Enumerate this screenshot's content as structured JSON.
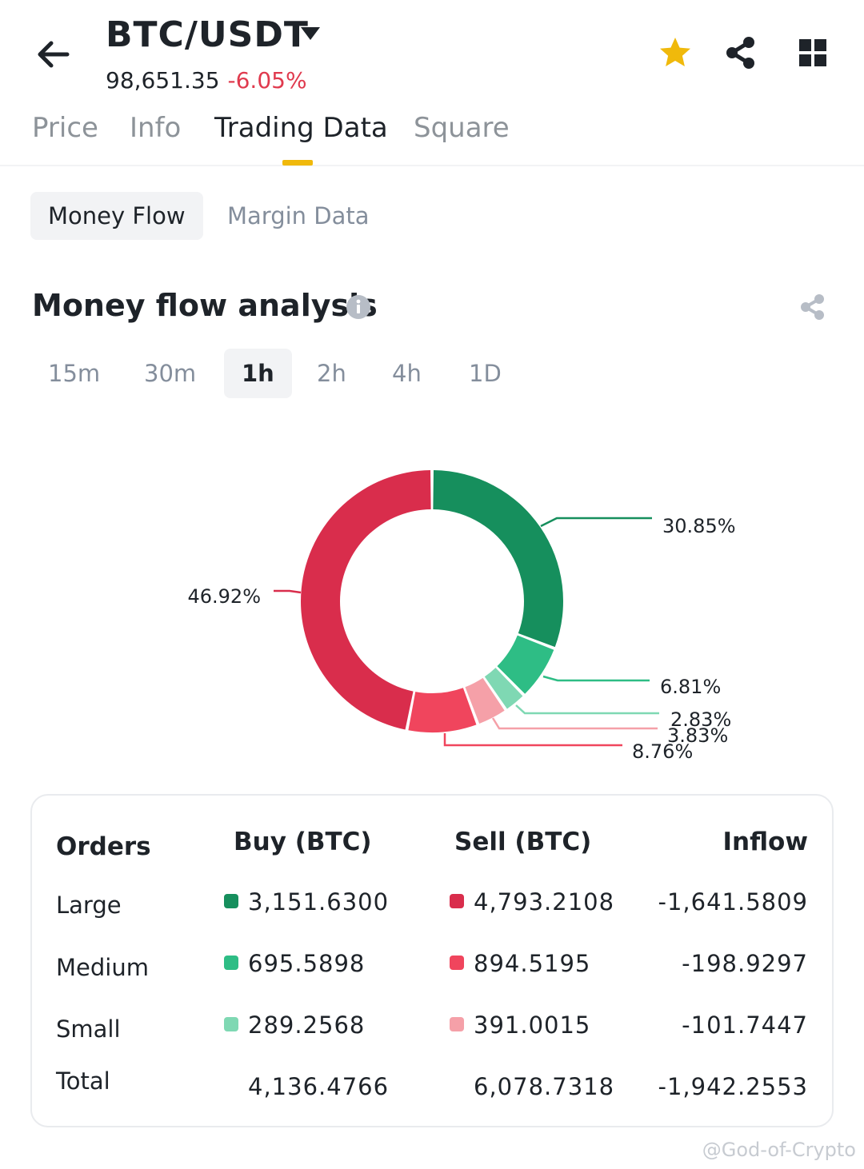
{
  "header": {
    "pair": "BTC/USDT",
    "last_price": "98,651.35",
    "change": "-6.05%",
    "icons": [
      "back-arrow-icon",
      "caret-down-icon",
      "star-icon",
      "share-icon",
      "grid-icon"
    ]
  },
  "tabs": {
    "items": [
      {
        "label": "Price",
        "active": false
      },
      {
        "label": "Info",
        "active": false
      },
      {
        "label": "Trading Data",
        "active": true
      },
      {
        "label": "Square",
        "active": false
      }
    ]
  },
  "subtabs": {
    "money_flow": "Money Flow",
    "margin_data": "Margin Data"
  },
  "section": {
    "title": "Money flow analysis"
  },
  "intervals": {
    "items": [
      "15m",
      "30m",
      "1h",
      "2h",
      "4h",
      "1D"
    ],
    "selected": "1h"
  },
  "chart_data": {
    "type": "pie",
    "slices": [
      {
        "label": "30.85%",
        "value": 30.85,
        "color": "#168f5d"
      },
      {
        "label": "6.81%",
        "value": 6.81,
        "color": "#2ebd85"
      },
      {
        "label": "2.83%",
        "value": 2.83,
        "color": "#7fd8b3"
      },
      {
        "label": "3.83%",
        "value": 3.83,
        "color": "#f5a0a8"
      },
      {
        "label": "8.76%",
        "value": 8.76,
        "color": "#f0455d"
      },
      {
        "label": "46.92%",
        "value": 46.92,
        "color": "#d92d4c"
      }
    ]
  },
  "table": {
    "headers": {
      "orders": "Orders",
      "buy": "Buy (BTC)",
      "sell": "Sell (BTC)",
      "inflow": "Inflow"
    },
    "rows": [
      {
        "label": "Large",
        "buy": "3,151.6300",
        "sell": "4,793.2108",
        "inflow": "-1,641.5809"
      },
      {
        "label": "Medium",
        "buy": "695.5898",
        "sell": "894.5195",
        "inflow": "-198.9297"
      },
      {
        "label": "Small",
        "buy": "289.2568",
        "sell": "391.0015",
        "inflow": "-101.7447"
      }
    ],
    "total": {
      "label": "Total",
      "buy": "4,136.4766",
      "sell": "6,078.7318",
      "inflow": "-1,942.2553"
    },
    "colors": {
      "large_buy": "#168f5d",
      "medium_buy": "#2ebd85",
      "small_buy": "#7fd8b3",
      "large_sell": "#d92d4c",
      "medium_sell": "#f0455d",
      "small_sell": "#f5a0a8"
    }
  },
  "watermark": "@God-of-Crypto"
}
